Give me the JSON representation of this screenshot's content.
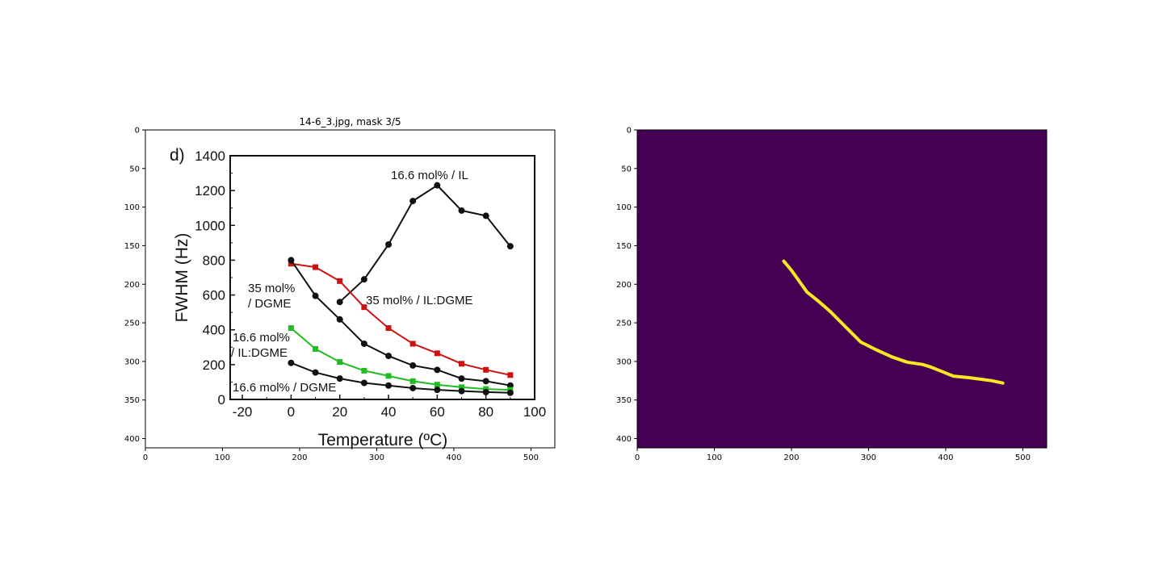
{
  "chart_data": [
    {
      "type": "image",
      "title": "14-6_3.jpg, mask 3/5",
      "x_ticks": [
        "0",
        "100",
        "200",
        "300",
        "400",
        "500"
      ],
      "y_ticks": [
        "0",
        "50",
        "100",
        "150",
        "200",
        "250",
        "300",
        "350",
        "400"
      ],
      "xlim": [
        0,
        531
      ],
      "ylim": [
        412,
        0
      ],
      "embedded_chart": {
        "type": "line",
        "panel_label": "d)",
        "xlabel": "Temperature (ºC)",
        "ylabel": "FWHM (Hz)",
        "xlim": [
          -25,
          100
        ],
        "ylim": [
          0,
          1400
        ],
        "x_ticks": [
          "-20",
          "0",
          "20",
          "40",
          "60",
          "80",
          "100"
        ],
        "y_ticks": [
          "0",
          "200",
          "400",
          "600",
          "800",
          "1000",
          "1200",
          "1400"
        ],
        "annotations": [
          {
            "text": "16.6 mol% / IL"
          },
          {
            "text": "35 mol%"
          },
          {
            "text": "/ DGME"
          },
          {
            "text": "35 mol% / IL:DGME"
          },
          {
            "text": "16.6 mol%"
          },
          {
            "text": "/ IL:DGME"
          },
          {
            "text": "16.6 mol% / DGME"
          }
        ],
        "series": [
          {
            "color": "#000000",
            "marker": "circle",
            "x": [
              20,
              30,
              40,
              50,
              60,
              70,
              80,
              90
            ],
            "y": [
              560,
              690,
              890,
              1140,
              1230,
              1085,
              1055,
              880
            ]
          },
          {
            "color": "#cc1111",
            "marker": "square",
            "x": [
              0,
              10,
              20,
              30,
              40,
              50,
              60,
              70,
              80,
              90
            ],
            "y": [
              780,
              760,
              680,
              530,
              410,
              320,
              265,
              205,
              170,
              140
            ]
          },
          {
            "color": "#000000",
            "marker": "circle",
            "x": [
              0,
              10,
              20,
              30,
              40,
              50,
              60,
              70,
              80,
              90
            ],
            "y": [
              800,
              595,
              460,
              320,
              250,
              195,
              170,
              120,
              105,
              80
            ]
          },
          {
            "color": "#22bb22",
            "marker": "square",
            "x": [
              0,
              10,
              20,
              30,
              40,
              50,
              60,
              70,
              80,
              90
            ],
            "y": [
              410,
              290,
              215,
              165,
              135,
              105,
              85,
              70,
              60,
              55
            ]
          },
          {
            "color": "#000000",
            "marker": "circle",
            "x": [
              0,
              10,
              20,
              30,
              40,
              50,
              60,
              70,
              80,
              90
            ],
            "y": [
              210,
              155,
              120,
              95,
              80,
              65,
              55,
              48,
              42,
              38
            ]
          }
        ]
      }
    },
    {
      "type": "heatmap",
      "title": "",
      "colormap": {
        "background": "#440154",
        "mask": "#fde725"
      },
      "x_ticks": [
        "0",
        "100",
        "200",
        "300",
        "400",
        "500"
      ],
      "y_ticks": [
        "0",
        "50",
        "100",
        "150",
        "200",
        "250",
        "300",
        "350",
        "400"
      ],
      "xlim": [
        0,
        531
      ],
      "ylim": [
        412,
        0
      ],
      "mask_path": {
        "x": [
          190,
          200,
          210,
          220,
          235,
          250,
          265,
          280,
          290,
          310,
          330,
          350,
          370,
          380,
          395,
          410,
          430,
          445,
          460,
          474
        ],
        "y": [
          170,
          182,
          196,
          210,
          222,
          235,
          250,
          265,
          275,
          285,
          294,
          301,
          304,
          307,
          313,
          319,
          321,
          323,
          325,
          328
        ]
      }
    }
  ]
}
